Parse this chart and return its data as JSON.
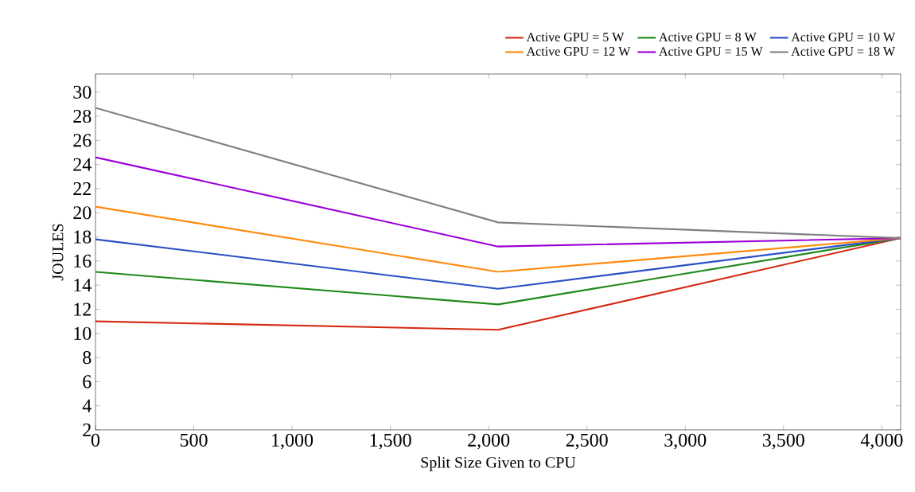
{
  "chart_data": {
    "type": "line",
    "xlabel": "Split Size Given to CPU",
    "ylabel": "JOULES",
    "x": [
      0,
      2048,
      4096
    ],
    "series": [
      {
        "name": "Active GPU = 5 W",
        "color": "#d42a12",
        "values": [
          11.0,
          10.3,
          17.9
        ]
      },
      {
        "name": "Active GPU = 8 W",
        "color": "#1f8a1a",
        "values": [
          15.1,
          12.4,
          17.9
        ]
      },
      {
        "name": "Active GPU = 10 W",
        "color": "#2a4fc4",
        "values": [
          17.8,
          13.7,
          17.9
        ]
      },
      {
        "name": "Active GPU = 12 W",
        "color": "#ff8a0d",
        "values": [
          20.5,
          15.1,
          17.9
        ]
      },
      {
        "name": "Active GPU = 15 W",
        "color": "#9b00d6",
        "values": [
          24.6,
          17.2,
          17.9
        ]
      },
      {
        "name": "Active GPU = 18 W",
        "color": "#808080",
        "values": [
          28.7,
          19.2,
          17.9
        ]
      }
    ],
    "xlim": [
      0,
      4096
    ],
    "ylim": [
      2,
      31.5
    ],
    "xticks": [
      0,
      500,
      {
        "value": 1000,
        "label": "1,000"
      },
      {
        "value": 1500,
        "label": "1,500"
      },
      {
        "value": 2000,
        "label": "2,000"
      },
      {
        "value": 2500,
        "label": "2,500"
      },
      {
        "value": 3000,
        "label": "3,000"
      },
      {
        "value": 3500,
        "label": "3,500"
      },
      {
        "value": 4000,
        "label": "4,000"
      }
    ],
    "yticks": [
      2,
      4,
      6,
      8,
      10,
      12,
      14,
      16,
      18,
      20,
      22,
      24,
      26,
      28,
      30
    ],
    "legend": "top right",
    "grid": false,
    "marker": "none",
    "line_style": "solid"
  }
}
